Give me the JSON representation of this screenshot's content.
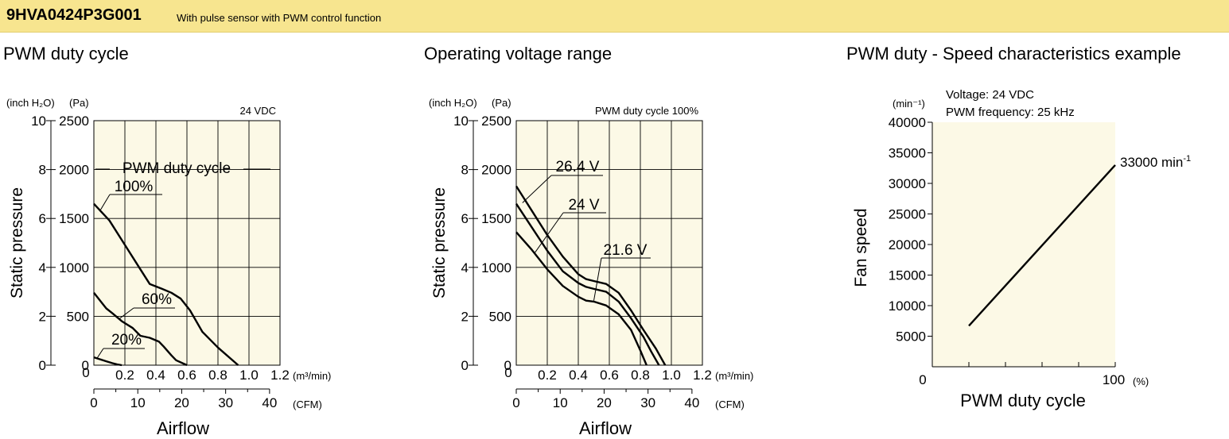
{
  "header": {
    "model": "9HVA0424P3G001",
    "description": "With pulse sensor with PWM control function",
    "band_color": "#f7e58f"
  },
  "colors": {
    "plot_bg": "#fcf9e6",
    "grid": "#000000",
    "curve": "#000000"
  },
  "sections": {
    "duty_title": "PWM duty cycle",
    "voltage_title": "Operating voltage range",
    "speed_title": "PWM duty - Speed characteristics example"
  },
  "chart_data": [
    {
      "type": "line",
      "title": "PWM duty cycle",
      "condition": "24 VDC",
      "ylabel": "Static pressure",
      "y_unit_inch": "(inch H₂O)",
      "y_unit_pa": "(Pa)",
      "xlabel": "Airflow",
      "x_unit_m3": "(m³/min)",
      "x_unit_cfm": "(CFM)",
      "x_ticks_m3": [
        "0",
        "0.2",
        "0.4",
        "0.6",
        "0.8",
        "1.0",
        "1.2"
      ],
      "x_ticks_cfm": [
        "0",
        "10",
        "20",
        "30",
        "40"
      ],
      "y_ticks_inch": [
        "0",
        "2",
        "4",
        "6",
        "8",
        "10"
      ],
      "y_ticks_pa": [
        "0",
        "500",
        "1000",
        "1500",
        "2000",
        "2500"
      ],
      "xlim": [
        0,
        1.2
      ],
      "ylim": [
        0,
        2500
      ],
      "grid": true,
      "legend_title": "PWM duty cycle",
      "series": [
        {
          "name": "100%",
          "x": [
            0,
            0.1,
            0.2,
            0.3,
            0.36,
            0.44,
            0.5,
            0.56,
            0.62,
            0.7,
            0.8,
            0.93
          ],
          "y": [
            1650,
            1480,
            1230,
            980,
            830,
            780,
            740,
            680,
            560,
            340,
            180,
            0
          ]
        },
        {
          "name": "60%",
          "x": [
            0,
            0.08,
            0.12,
            0.18,
            0.25,
            0.3,
            0.36,
            0.42,
            0.45,
            0.5,
            0.53,
            0.6
          ],
          "y": [
            740,
            580,
            530,
            450,
            380,
            300,
            280,
            240,
            190,
            100,
            50,
            0
          ]
        },
        {
          "name": "20%",
          "x": [
            0,
            0.04,
            0.08,
            0.12,
            0.15,
            0.18
          ],
          "y": [
            80,
            60,
            40,
            20,
            8,
            0
          ]
        }
      ]
    },
    {
      "type": "line",
      "title": "Operating voltage range",
      "condition": "PWM duty cycle 100%",
      "ylabel": "Static pressure",
      "y_unit_inch": "(inch H₂O)",
      "y_unit_pa": "(Pa)",
      "xlabel": "Airflow",
      "x_unit_m3": "(m³/min)",
      "x_unit_cfm": "(CFM)",
      "x_ticks_m3": [
        "0",
        "0.2",
        "0.4",
        "0.6",
        "0.8",
        "1.0",
        "1.2"
      ],
      "x_ticks_cfm": [
        "0",
        "10",
        "20",
        "30",
        "40"
      ],
      "y_ticks_inch": [
        "0",
        "2",
        "4",
        "6",
        "8",
        "10"
      ],
      "y_ticks_pa": [
        "0",
        "500",
        "1000",
        "1500",
        "2000",
        "2500"
      ],
      "xlim": [
        0,
        1.2
      ],
      "ylim": [
        0,
        2500
      ],
      "grid": true,
      "series": [
        {
          "name": "26.4 V",
          "x": [
            0,
            0.1,
            0.2,
            0.3,
            0.4,
            0.45,
            0.5,
            0.58,
            0.66,
            0.74,
            0.82,
            0.9,
            0.96
          ],
          "y": [
            1830,
            1580,
            1330,
            1110,
            930,
            880,
            860,
            830,
            740,
            560,
            360,
            170,
            0
          ]
        },
        {
          "name": "24 V",
          "x": [
            0,
            0.1,
            0.2,
            0.3,
            0.4,
            0.45,
            0.5,
            0.58,
            0.66,
            0.74,
            0.82,
            0.87,
            0.92
          ],
          "y": [
            1650,
            1410,
            1170,
            960,
            840,
            800,
            780,
            750,
            650,
            480,
            290,
            140,
            0
          ]
        },
        {
          "name": "21.6 V",
          "x": [
            0,
            0.1,
            0.2,
            0.3,
            0.4,
            0.45,
            0.5,
            0.58,
            0.66,
            0.74,
            0.8,
            0.84
          ],
          "y": [
            1360,
            1180,
            980,
            810,
            700,
            660,
            650,
            610,
            520,
            360,
            150,
            0
          ]
        }
      ]
    },
    {
      "type": "line",
      "title": "PWM duty - Speed characteristics example",
      "condition_voltage": "Voltage: 24 VDC",
      "condition_frequency": "PWM frequency: 25 kHz",
      "ylabel": "Fan speed",
      "y_unit": "(min⁻¹)",
      "xlabel": "PWM duty cycle",
      "x_unit": "(%)",
      "y_ticks": [
        "5000",
        "10000",
        "15000",
        "20000",
        "25000",
        "30000",
        "35000",
        "40000"
      ],
      "x_ticks": [
        "0",
        "100"
      ],
      "xlim": [
        0,
        100
      ],
      "ylim": [
        0,
        40000
      ],
      "grid": false,
      "end_label": "33000 min",
      "end_label_sup": "-1",
      "series": [
        {
          "x": [
            20,
            100
          ],
          "y": [
            6700,
            33000
          ]
        }
      ]
    }
  ]
}
